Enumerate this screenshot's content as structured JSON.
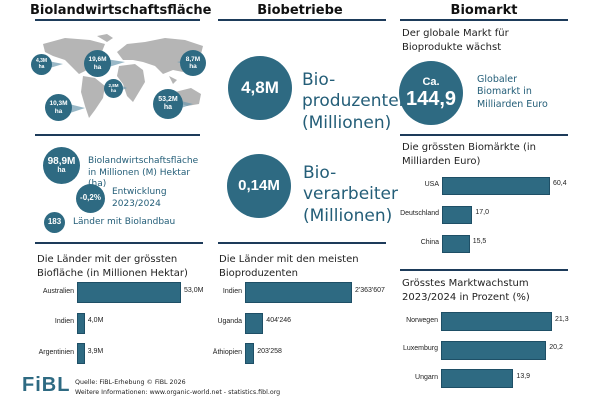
{
  "colors": {
    "accent": "#2e6a82",
    "rule": "#1d3b5a",
    "map": "#b5b5b5"
  },
  "col1": {
    "heading": "Biolandwirtschaftsfläche",
    "map_bubbles": [
      {
        "value": "4,3M",
        "unit": "ha"
      },
      {
        "value": "19,6M",
        "unit": "ha"
      },
      {
        "value": "2,8M",
        "unit": "ha"
      },
      {
        "value": "10,3M",
        "unit": "ha"
      },
      {
        "value": "53,2M",
        "unit": "ha"
      },
      {
        "value": "8,7M",
        "unit": "ha"
      }
    ],
    "stats": [
      {
        "value": "98,9M",
        "unit": "ha",
        "text": "Biolandwirtschaftsfläche in Millionen (M) Hektar (ha)"
      },
      {
        "value": "-0,2%",
        "text": "Entwicklung 2023/2024"
      },
      {
        "value": "183",
        "text": "Länder mit Biolandbau"
      }
    ]
  },
  "col2": {
    "heading": "Biobetriebe",
    "stats": [
      {
        "value": "4,8M",
        "text": "Bio-\nproduzenten\n(Millionen)"
      },
      {
        "value": "0,14M",
        "text": "Bio-\nverarbeiter\n(Millionen)"
      }
    ]
  },
  "col3": {
    "heading": "Biomarkt",
    "subtitle": "Der globale Markt für Bioprodukte wächst",
    "circle_prefix": "Ca.",
    "circle_value": "144,9",
    "circle_text": "Globaler Biomarkt in Milliarden Euro"
  },
  "chart_data": [
    {
      "type": "bar",
      "orientation": "horizontal",
      "title": "Die Länder mit der grössten Biofläche (in Millionen Hektar)",
      "categories": [
        "Australien",
        "Indien",
        "Argentinien"
      ],
      "values": [
        53.0,
        4.0,
        3.9
      ],
      "value_labels": [
        "53,0M",
        "4,0M",
        "3,9M"
      ]
    },
    {
      "type": "bar",
      "orientation": "horizontal",
      "title": "Die Länder mit den meisten Bioproduzenten",
      "categories": [
        "Indien",
        "Uganda",
        "Äthiopien"
      ],
      "values": [
        2363607,
        404246,
        203258
      ],
      "value_labels": [
        "2'363'607",
        "404'246",
        "203'258"
      ]
    },
    {
      "type": "bar",
      "orientation": "horizontal",
      "title": "Die grössten Biomärkte (in Milliarden Euro)",
      "categories": [
        "USA",
        "Deutschland",
        "China"
      ],
      "values": [
        60.4,
        17.0,
        15.5
      ],
      "value_labels": [
        "60,4",
        "17,0",
        "15,5"
      ]
    },
    {
      "type": "bar",
      "orientation": "horizontal",
      "title": "Grösstes Marktwachstum 2023/2024 in Prozent (%)",
      "categories": [
        "Norwegen",
        "Luxemburg",
        "Ungarn"
      ],
      "values": [
        21.3,
        20.2,
        13.9
      ],
      "value_labels": [
        "21,3",
        "20,2",
        "13,9"
      ]
    }
  ],
  "footer": {
    "logo": "FiBL",
    "source": "Quelle: FiBL-Erhebung © FiBL 2026",
    "more": "Weitere Informationen: www.organic-world.net - statistics.fibl.org"
  }
}
